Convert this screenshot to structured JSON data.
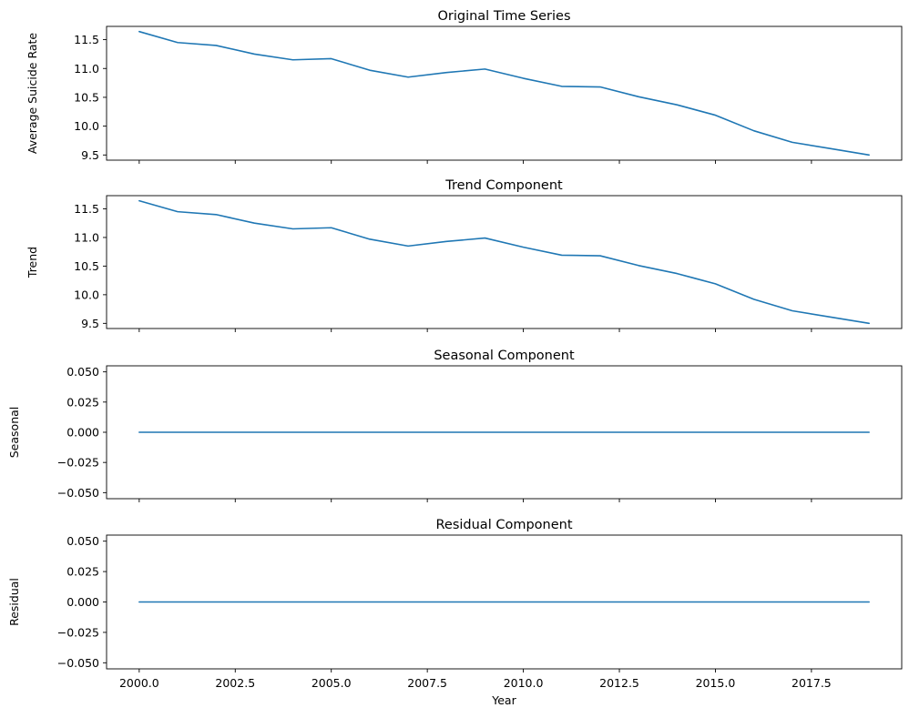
{
  "chart_data": {
    "type": "line",
    "line_color": "#1f77b4",
    "grid": false,
    "xlabel": "Year",
    "xlim": [
      1999.15,
      2019.85
    ],
    "xticks": [
      2000.0,
      2002.5,
      2005.0,
      2007.5,
      2010.0,
      2012.5,
      2015.0,
      2017.5
    ],
    "xtick_labels": [
      "2000.0",
      "2002.5",
      "2005.0",
      "2007.5",
      "2010.0",
      "2012.5",
      "2015.0",
      "2017.5"
    ],
    "x": [
      2000,
      2001,
      2002,
      2003,
      2004,
      2005,
      2006,
      2007,
      2008,
      2009,
      2010,
      2011,
      2012,
      2013,
      2014,
      2015,
      2016,
      2017,
      2018,
      2019
    ],
    "panels": [
      {
        "title": "Original Time Series",
        "ylabel": "Average Suicide Rate",
        "ylim": [
          9.41,
          11.73
        ],
        "yticks": [
          9.5,
          10.0,
          10.5,
          11.0,
          11.5
        ],
        "ytick_labels": [
          "9.5",
          "10.0",
          "10.5",
          "11.0",
          "11.5"
        ],
        "values": [
          11.64,
          11.45,
          11.4,
          11.25,
          11.15,
          11.17,
          10.97,
          10.85,
          10.93,
          10.99,
          10.83,
          10.69,
          10.68,
          10.51,
          10.37,
          10.19,
          9.92,
          9.72,
          9.61,
          9.5
        ]
      },
      {
        "title": "Trend Component",
        "ylabel": "Trend",
        "ylim": [
          9.41,
          11.73
        ],
        "yticks": [
          9.5,
          10.0,
          10.5,
          11.0,
          11.5
        ],
        "ytick_labels": [
          "9.5",
          "10.0",
          "10.5",
          "11.0",
          "11.5"
        ],
        "values": [
          11.64,
          11.45,
          11.4,
          11.25,
          11.15,
          11.17,
          10.97,
          10.85,
          10.93,
          10.99,
          10.83,
          10.69,
          10.68,
          10.51,
          10.37,
          10.19,
          9.92,
          9.72,
          9.61,
          9.5
        ]
      },
      {
        "title": "Seasonal Component",
        "ylabel": "Seasonal",
        "ylim": [
          -0.055,
          0.055
        ],
        "yticks": [
          -0.05,
          -0.025,
          0.0,
          0.025,
          0.05
        ],
        "ytick_labels": [
          "−0.050",
          "−0.025",
          "0.000",
          "0.025",
          "0.050"
        ],
        "values": [
          0,
          0,
          0,
          0,
          0,
          0,
          0,
          0,
          0,
          0,
          0,
          0,
          0,
          0,
          0,
          0,
          0,
          0,
          0,
          0
        ]
      },
      {
        "title": "Residual Component",
        "ylabel": "Residual",
        "ylim": [
          -0.055,
          0.055
        ],
        "yticks": [
          -0.05,
          -0.025,
          0.0,
          0.025,
          0.05
        ],
        "ytick_labels": [
          "−0.050",
          "−0.025",
          "0.000",
          "0.025",
          "0.050"
        ],
        "values": [
          0,
          0,
          0,
          0,
          0,
          0,
          0,
          0,
          0,
          0,
          0,
          0,
          0,
          0,
          0,
          0,
          0,
          0,
          0,
          0
        ]
      }
    ]
  }
}
